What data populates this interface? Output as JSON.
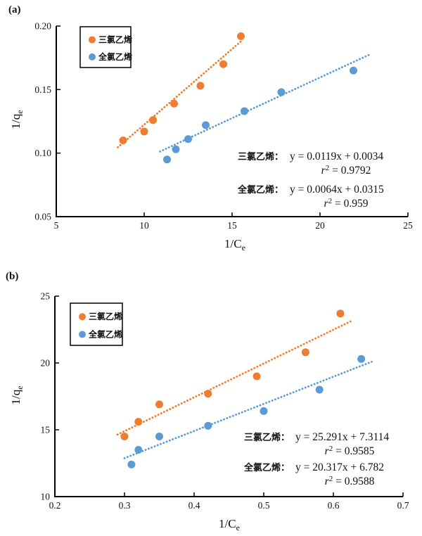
{
  "chart_data": [
    {
      "panel_label": "(a)",
      "type": "scatter",
      "xlabel_main": "1/C",
      "xlabel_sub": "e",
      "ylabel_main": "1/q",
      "ylabel_sub": "e",
      "xlim": [
        5,
        25
      ],
      "ylim": [
        0.05,
        0.2
      ],
      "xtick_values": [
        5,
        10,
        15,
        20,
        25
      ],
      "xtick_labels": [
        "5",
        "10",
        "15",
        "20",
        "25"
      ],
      "ytick_values": [
        0.05,
        0.1,
        0.15,
        0.2
      ],
      "ytick_labels": [
        "0.05",
        "0.10",
        "0.15",
        "0.20"
      ],
      "grid": false,
      "legend_position": "upper-left-inside",
      "series": [
        {
          "name": "三氯乙烯",
          "color": "#ED7D31",
          "points": [
            [
              8.8,
              0.11
            ],
            [
              10.0,
              0.117
            ],
            [
              10.5,
              0.126
            ],
            [
              11.7,
              0.139
            ],
            [
              13.2,
              0.153
            ],
            [
              14.5,
              0.17
            ],
            [
              15.5,
              0.192
            ]
          ],
          "trend": {
            "slope": 0.0119,
            "intercept": 0.0034,
            "x1": 8.5,
            "x2": 15.5
          }
        },
        {
          "name": "全氯乙烯",
          "color": "#5B9BD5",
          "points": [
            [
              11.3,
              0.095
            ],
            [
              11.8,
              0.103
            ],
            [
              12.5,
              0.111
            ],
            [
              13.5,
              0.122
            ],
            [
              15.7,
              0.133
            ],
            [
              17.8,
              0.148
            ],
            [
              21.9,
              0.165
            ]
          ],
          "trend": {
            "slope": 0.0064,
            "intercept": 0.0315,
            "x1": 10.9,
            "x2": 22.8
          }
        }
      ],
      "annotations": [
        {
          "label": "三氯乙烯：",
          "equation": "y = 0.0119x + 0.0034",
          "r2": "0.9792"
        },
        {
          "label": "全氯乙烯：",
          "equation": "y = 0.0064x + 0.0315",
          "r2": "0.959"
        }
      ]
    },
    {
      "panel_label": "(b)",
      "type": "scatter",
      "xlabel_main": "1/C",
      "xlabel_sub": "e",
      "ylabel_main": "1/q",
      "ylabel_sub": "e",
      "xlim": [
        0.2,
        0.7
      ],
      "ylim": [
        10,
        25
      ],
      "xtick_values": [
        0.2,
        0.3,
        0.4,
        0.5,
        0.6,
        0.7
      ],
      "xtick_labels": [
        "0.2",
        "0.3",
        "0.4",
        "0.5",
        "0.6",
        "0.7"
      ],
      "ytick_values": [
        10,
        15,
        20,
        25
      ],
      "ytick_labels": [
        "10",
        "15",
        "20",
        "25"
      ],
      "grid": false,
      "legend_position": "upper-left-inside",
      "series": [
        {
          "name": "三氯乙烯",
          "color": "#ED7D31",
          "points": [
            [
              0.3,
              14.5
            ],
            [
              0.32,
              15.6
            ],
            [
              0.35,
              16.9
            ],
            [
              0.42,
              17.7
            ],
            [
              0.49,
              19.0
            ],
            [
              0.56,
              20.8
            ],
            [
              0.61,
              23.7
            ]
          ],
          "trend": {
            "slope": 25.291,
            "intercept": 7.3114,
            "x1": 0.29,
            "x2": 0.625
          }
        },
        {
          "name": "全氯乙烯",
          "color": "#5B9BD5",
          "points": [
            [
              0.31,
              12.4
            ],
            [
              0.32,
              13.5
            ],
            [
              0.35,
              14.5
            ],
            [
              0.42,
              15.3
            ],
            [
              0.5,
              16.4
            ],
            [
              0.58,
              18.0
            ],
            [
              0.64,
              20.3
            ]
          ],
          "trend": {
            "slope": 20.317,
            "intercept": 6.782,
            "x1": 0.3,
            "x2": 0.655
          }
        }
      ],
      "annotations": [
        {
          "label": "三氯乙烯：",
          "equation": "y = 25.291x + 7.3114",
          "r2": "0.9585"
        },
        {
          "label": "全氯乙烯：",
          "equation": "y = 20.317x + 6.782",
          "r2": "0.9588"
        }
      ]
    }
  ]
}
